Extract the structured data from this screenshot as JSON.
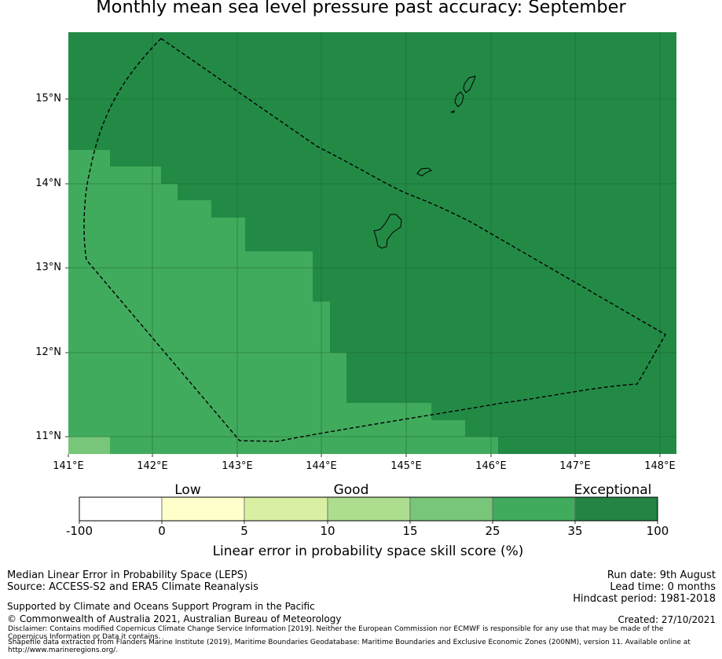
{
  "title": "Monthly mean sea level pressure past accuracy: September",
  "map": {
    "lat_labels": [
      "15°N",
      "14°N",
      "13°N",
      "12°N",
      "11°N"
    ],
    "lon_labels": [
      "141°E",
      "142°E",
      "143°E",
      "144°E",
      "145°E",
      "146°E",
      "147°E",
      "148°E"
    ],
    "colors": {
      "exceptional": "#238a46",
      "good_high": "#41ab5d",
      "good_low": "#78c679",
      "gridline": "#1a5e2f",
      "boundary": "#000000"
    }
  },
  "colorbar": {
    "levels": [
      "Low",
      "Good",
      "Exceptional"
    ],
    "ticks": [
      "-100",
      "0",
      "5",
      "10",
      "15",
      "25",
      "35",
      "100"
    ],
    "colors": [
      "#ffffff",
      "#ffffcc",
      "#d9f0a3",
      "#addd8e",
      "#78c679",
      "#41ab5d",
      "#238443"
    ],
    "label": "Linear error in probability space skill score (%)"
  },
  "footer": {
    "line1": "Median Linear Error in Probability Space (LEPS)",
    "line2": "Source: ACCESS-S2 and ERA5 Climate Reanalysis",
    "support": "Supported by Climate and Oceans Support Program in the Pacific",
    "copyright": "© Commonwealth of Australia 2021, Australian Bureau of Meteorology",
    "disclaimer1": "Disclaimer: Contains modified Copernicus Climate Change Service Information [2019]. Neither the European Commission nor ECMWF is responsible for any use that may be made of the",
    "disclaimer2": "Copernicus Information or Data it contains.",
    "shapefile1": "Shapefile data extracted from Flanders Marine Institute (2019), Maritime Boundaries Geodatabase: Maritime Boundaries and Exclusive Economic Zones (200NM), version 11. Available online at",
    "shapefile2": "http://www.marineregions.org/.",
    "run_date": "Run date: 9th August",
    "lead_time": "Lead time: 0 months",
    "hindcast": "Hindcast period: 1981-2018",
    "created": "Created: 27/10/2021"
  }
}
